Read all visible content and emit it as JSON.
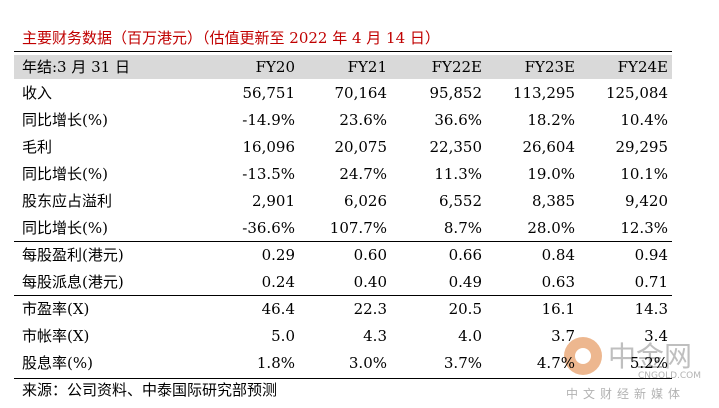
{
  "header": {
    "title": "主要财务数据（百万港元）（估值更新至 2022 年 4 月 14 日）"
  },
  "table": {
    "columns": [
      "年结:3 月 31 日",
      "FY20",
      "FY21",
      "FY22E",
      "FY23E",
      "FY24E"
    ],
    "groups": [
      [
        [
          "收入",
          "56,751",
          "70,164",
          "95,852",
          "113,295",
          "125,084"
        ],
        [
          "同比增长(%)",
          "-14.9%",
          "23.6%",
          "36.6%",
          "18.2%",
          "10.4%"
        ],
        [
          "毛利",
          "16,096",
          "20,075",
          "22,350",
          "26,604",
          "29,295"
        ],
        [
          "同比增长(%)",
          "-13.5%",
          "24.7%",
          "11.3%",
          "19.0%",
          "10.1%"
        ],
        [
          "股东应占溢利",
          "2,901",
          "6,026",
          "6,552",
          "8,385",
          "9,420"
        ],
        [
          "同比增长(%)",
          "-36.6%",
          "107.7%",
          "8.7%",
          "28.0%",
          "12.3%"
        ]
      ],
      [
        [
          "每股盈利(港元)",
          "0.29",
          "0.60",
          "0.66",
          "0.84",
          "0.94"
        ],
        [
          "每股派息(港元)",
          "0.24",
          "0.40",
          "0.49",
          "0.63",
          "0.71"
        ]
      ],
      [
        [
          "市盈率(X)",
          "46.4",
          "22.3",
          "20.5",
          "16.1",
          "14.3"
        ],
        [
          "市帐率(X)",
          "5.0",
          "4.3",
          "4.0",
          "3.7",
          "3.4"
        ],
        [
          "股息率(%)",
          "1.8%",
          "3.0%",
          "3.7%",
          "4.7%",
          "5.2%"
        ]
      ]
    ]
  },
  "footer": {
    "source": "来源：公司资料、中泰国际研究部预测"
  },
  "watermark": {
    "brand": "中金网",
    "site": "CNGOLD.COM",
    "slogan": "中文财经新媒体"
  }
}
